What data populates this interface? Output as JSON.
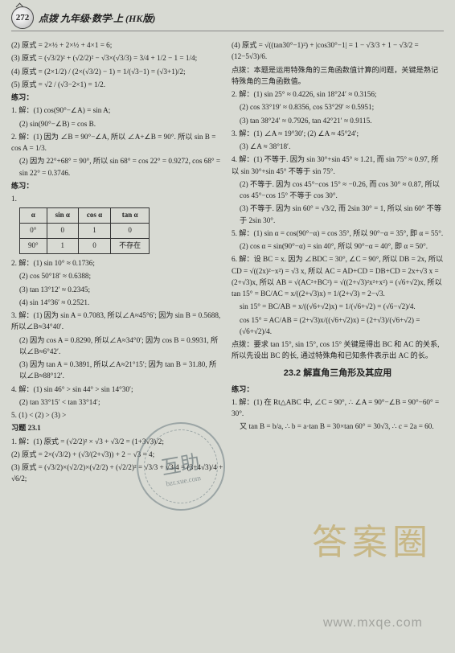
{
  "header": {
    "page_number": "272",
    "title": "点拨 九年级·数学·上 (HK版)"
  },
  "left": {
    "l1": "(2) 原式 = 2×½ + 2×½ + 4×1 = 6;",
    "l2": "(3) 原式 = (√3/2)² + (√2/2)² − √3×(√3/3) = 3/4 + 1/2 − 1 = 1/4;",
    "l3": "(4) 原式 = (2×1/2) / (2×(√3/2) − 1) = 1/(√3−1) = (√3+1)/2;",
    "l4": "(5) 原式 = √2 / (√3−2×1) = 1/2.",
    "p1_hdr": "练习：",
    "p1_1": "1. 解：(1) cos(90°−∠A) = sin A;",
    "p1_2": "(2) sin(90°−∠B) = cos B.",
    "p2_1": "2. 解：(1) 因为 ∠B = 90°−∠A, 所以 ∠A+∠B = 90°. 所以 sin B = cos A = 1/3.",
    "p2_2": "(2) 因为 22°+68° = 90°, 所以 sin 68° = cos 22° = 0.9272, cos 68° = sin 22° = 0.3746.",
    "p2_hdr": "练习：",
    "p2_tbl_h1": "α",
    "p2_tbl_h2": "sin α",
    "p2_tbl_h3": "cos α",
    "p2_tbl_h4": "tan α",
    "p2_tbl_r1c1": "0°",
    "p2_tbl_r1c2": "0",
    "p2_tbl_r1c3": "1",
    "p2_tbl_r1c4": "0",
    "p2_tbl_r2c1": "90°",
    "p2_tbl_r2c2": "1",
    "p2_tbl_r2c3": "0",
    "p2_tbl_r2c4": "不存在",
    "p3_1": "2. 解：(1) sin 10° ≈ 0.1736;",
    "p3_2": "(2) cos 50°18′ ≈ 0.6388;",
    "p3_3": "(3) tan 13°12′ ≈ 0.2345;",
    "p3_4": "(4) sin 14°36′ ≈ 0.2521.",
    "p4_1": "3. 解：(1) 因为 sin A = 0.7083, 所以∠A≈45°6′; 因为 sin B = 0.5688, 所以∠B≈34°40′.",
    "p4_2": "(2) 因为 cos A = 0.8290, 所以∠A≈34°0′; 因为 cos B = 0.9931, 所以∠B≈6°42′.",
    "p4_3": "(3) 因为 tan A = 0.3891, 所以∠A≈21°15′; 因为 tan B = 31.80, 所以∠B≈88°12′.",
    "p5_1": "4. 解：(1) sin 46° > sin 44° > sin 14°30′;",
    "p5_2": "(2) tan 33°15′ < tan 33°14′;",
    "p5_3": "5. (1) < (2) > (3) >",
    "xt_hdr": "习题 23.1",
    "xt1": "1. 解：(1) 原式 = (√2/2)² × √3 + √3/2 = (1+3√3)/2;",
    "xt2": "(2) 原式 = 2×(√3/2) + (√3/(2+√3)) + 2 − √3 = 4;",
    "xt3": "(3) 原式 = (√3/2)×(√2/2)×(√2/2) + (√2/2)² = √3/3 + √3/4 = (3+4√3)/4 + √6/2;"
  },
  "right": {
    "r1": "(4) 原式 = √((tan30°−1)²) + |cos30°−1| = 1 − √3/3 + 1 − √3/2 = (12−5√3)/6.",
    "r1_db": "点拨：本题是运用特殊角的三角函数值计算的问题，关键是熟记特殊角的三角函数值。",
    "r2_1": "2. 解：(1) sin 25° ≈ 0.4226, sin 18°24′ ≈ 0.3156;",
    "r2_2": "(2) cos 33°19′ ≈ 0.8356, cos 53°29′ ≈ 0.5951;",
    "r2_3": "(3) tan 38°24′ ≈ 0.7926, tan 42°21′ ≈ 0.9115.",
    "r3_1": "3. 解：(1) ∠A ≈ 19°30′; (2) ∠A ≈ 45°24′;",
    "r3_2": "(3) ∠A ≈ 38°18′.",
    "r4_1": "4. 解：(1) 不等于. 因为 sin 30°+sin 45° ≈ 1.21, 而 sin 75° ≈ 0.97, 所以 sin 30°+sin 45° 不等于 sin 75°.",
    "r4_2": "(2) 不等于. 因为 cos 45°−cos 15° ≈ −0.26, 而 cos 30° ≈ 0.87, 所以 cos 45°−cos 15° 不等于 cos 30°.",
    "r4_3": "(3) 不等于. 因为 sin 60° = √3/2, 而 2sin 30° = 1, 所以 sin 60° 不等于 2sin 30°.",
    "r5_1": "5. 解：(1) sin α = cos(90°−α) = cos 35°, 所以 90°−α = 35°, 即 α = 55°.",
    "r5_2": "(2) cos α = sin(90°−α) = sin 40°, 所以 90°−α = 40°, 即 α = 50°.",
    "r6_1": "6. 解：设 BC = x. 因为 ∠BDC = 30°, ∠C = 90°, 所以 DB = 2x, 所以 CD = √((2x)²−x²) = √3 x, 所以 AC = AD+CD = DB+CD = 2x+√3 x = (2+√3)x, 所以 AB = √(AC²+BC²) = √((2+√3)²x²+x²) = (√6+√2)x, 所以 tan 15° = BC/AC = x/((2+√3)x) = 1/(2+√3) = 2−√3.",
    "r6_2": "sin 15° = BC/AB = x/((√6+√2)x) = 1/(√6+√2) = (√6−√2)/4.",
    "r6_3": "cos 15° = AC/AB = (2+√3)x/((√6+√2)x) = (2+√3)/(√6+√2) = (√6+√2)/4.",
    "r6_db": "点拨：要求 tan 15°, sin 15°, cos 15° 关键是得出 BC 和 AC 的关系, 所以先设出 BC 的长, 通过特殊角和已知条件表示出 AC 的长。",
    "sec_title": "23.2 解直角三角形及其应用",
    "sec_hdr": "练习：",
    "sec1": "1. 解：(1) 在 Rt△ABC 中, ∠C = 90°, ∴ ∠A = 90°−∠B = 90°−60° = 30°.",
    "sec2": "又 tan B = b/a, ∴ b = a·tan B = 30×tan 60° = 30√3, ∴ c = 2a = 60."
  },
  "watermarks": {
    "stamp_main": "互助",
    "stamp_sub": "bzr.xue.com",
    "brand": "答案圈",
    "url": "www.mxqe.com"
  }
}
